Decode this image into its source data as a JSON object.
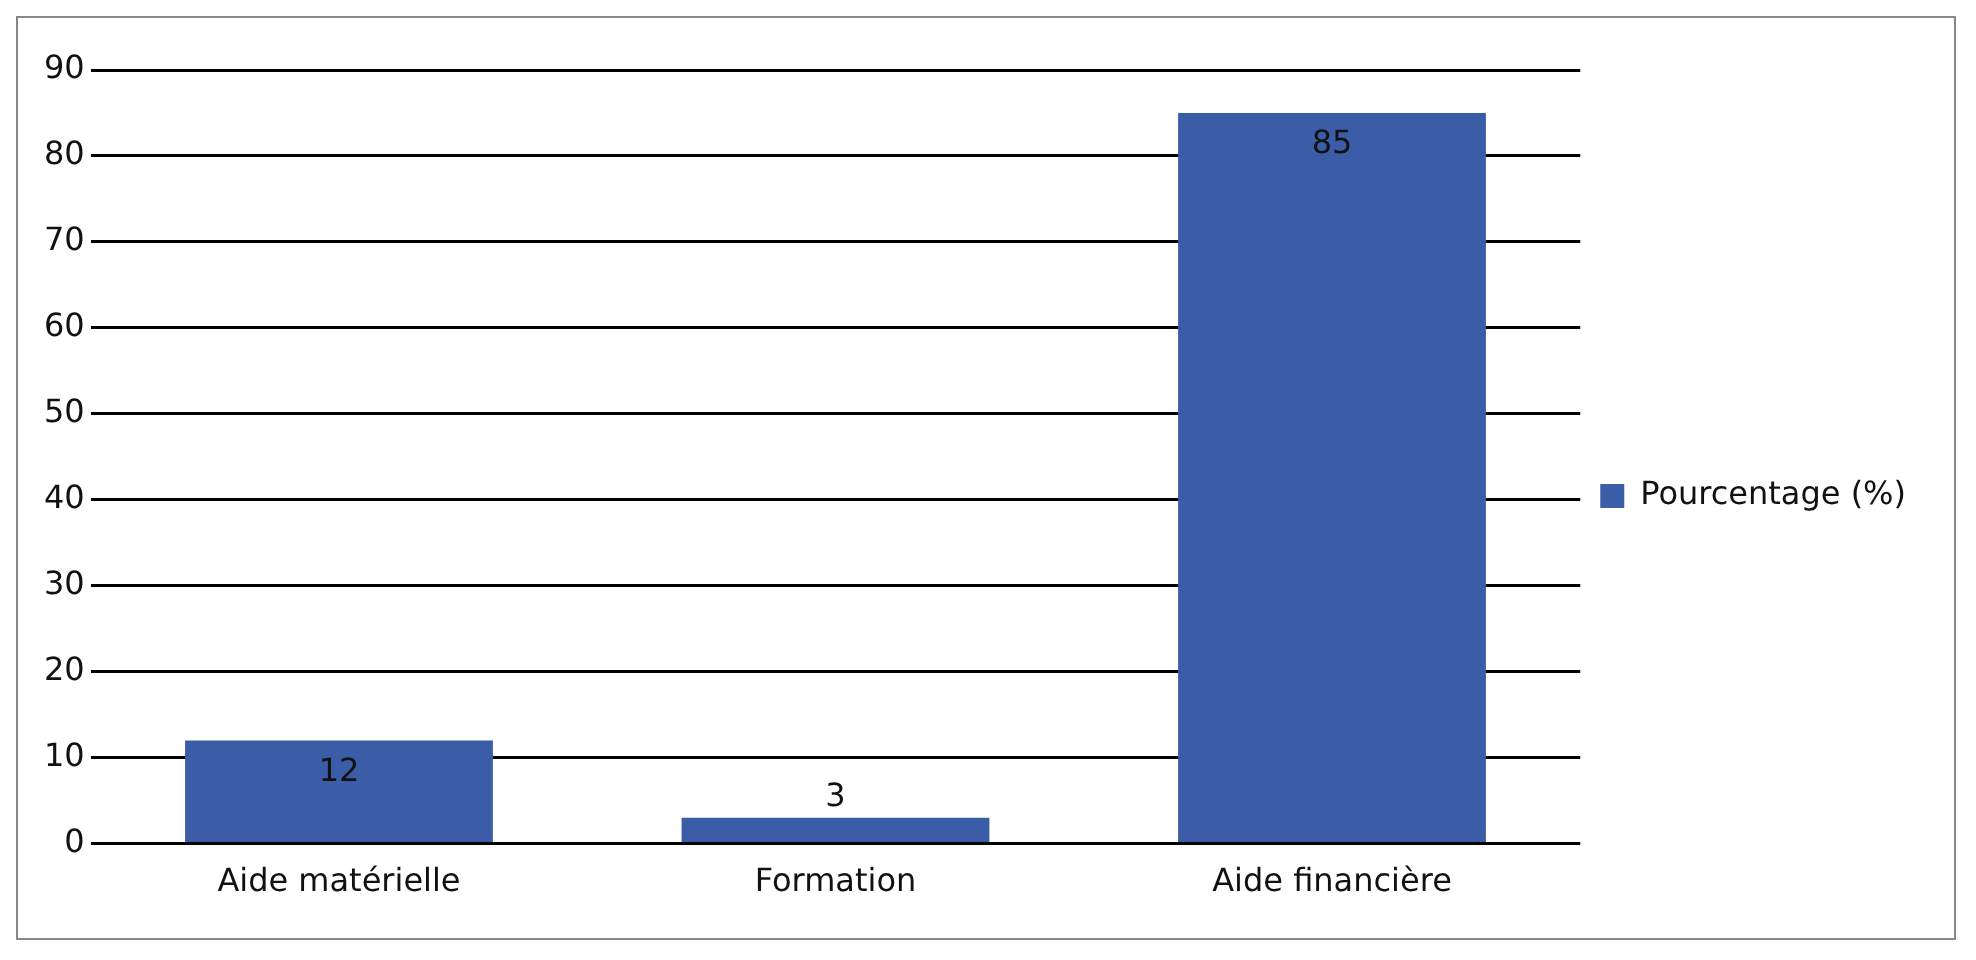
{
  "chart_data": {
    "type": "bar",
    "categories": [
      "Aide matérielle",
      "Formation",
      "Aide financière"
    ],
    "series": [
      {
        "name": "Pourcentage (%)",
        "color": "#3b5da8",
        "values": [
          12,
          3,
          85
        ]
      }
    ],
    "ylim": [
      0,
      90
    ],
    "yticks": [
      0,
      10,
      20,
      30,
      40,
      50,
      60,
      70,
      80,
      90
    ],
    "grid": "y",
    "legend": "right",
    "data_labels": true
  }
}
